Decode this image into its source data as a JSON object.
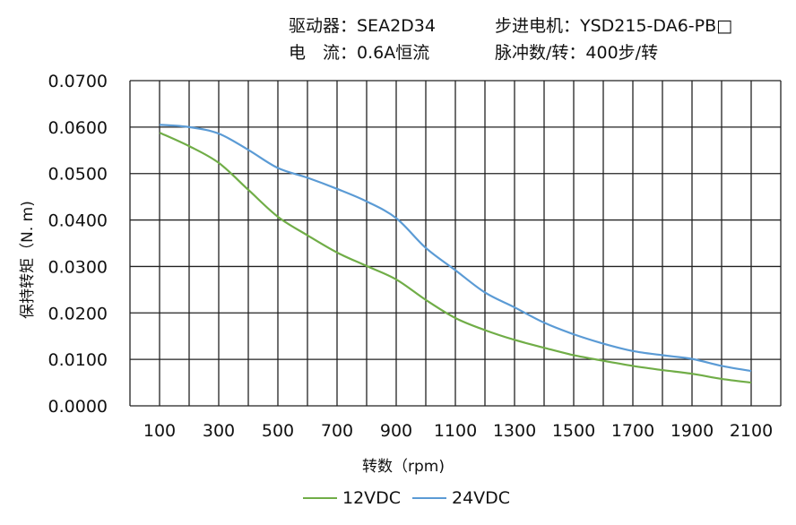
{
  "header": {
    "driver": "驱动器：SEA2D34",
    "motor": "步进电机：YSD215-DA6-PB□",
    "current": "电　流：0.6A恒流",
    "pulses": "脉冲数/转：400步/转"
  },
  "chart_data": {
    "type": "line",
    "xlabel": "转数（rpm)",
    "ylabel": "保持转矩（N. m)",
    "xlim": [
      0,
      2200
    ],
    "ylim": [
      0,
      0.07
    ],
    "x_ticks": [
      "100",
      "300",
      "500",
      "700",
      "900",
      "1100",
      "1300",
      "1500",
      "1700",
      "1900",
      "2100"
    ],
    "y_ticks": [
      "0.0000",
      "0.0100",
      "0.0200",
      "0.0300",
      "0.0400",
      "0.0500",
      "0.0600",
      "0.0700"
    ],
    "grid": true,
    "legend": "bottom",
    "x": [
      100,
      200,
      300,
      400,
      500,
      600,
      700,
      800,
      900,
      1000,
      1100,
      1200,
      1300,
      1400,
      1500,
      1600,
      1700,
      1800,
      1900,
      2000,
      2100
    ],
    "series": [
      {
        "name": "12VDC",
        "color": "#70ad47",
        "values": [
          0.0588,
          0.0559,
          0.0523,
          0.0465,
          0.0407,
          0.0367,
          0.033,
          0.0301,
          0.0272,
          0.0228,
          0.0189,
          0.0163,
          0.0142,
          0.0125,
          0.0109,
          0.0097,
          0.0086,
          0.0077,
          0.0069,
          0.0058,
          0.005
        ]
      },
      {
        "name": "24VDC",
        "color": "#5b9bd5",
        "values": [
          0.0605,
          0.06,
          0.0586,
          0.0551,
          0.0512,
          0.0491,
          0.0467,
          0.044,
          0.0404,
          0.034,
          0.0292,
          0.0244,
          0.0212,
          0.0179,
          0.0154,
          0.0134,
          0.0118,
          0.0109,
          0.0101,
          0.0086,
          0.0075
        ]
      }
    ]
  }
}
